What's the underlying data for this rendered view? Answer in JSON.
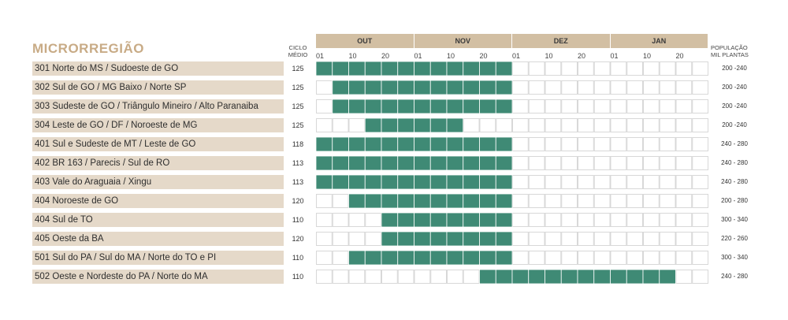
{
  "header": {
    "title": "MICRORREGIÃO",
    "ciclo_line1": "CICLO",
    "ciclo_line2": "MÉDIO",
    "pop_line1": "POPULAÇÃO",
    "pop_line2": "MIL PLANTAS"
  },
  "colors": {
    "fill": "#3f8a75",
    "cell_border": "#d8d8d8",
    "month_bar": "#d2bfa3",
    "region_bg": "#e5d9c9",
    "title": "#c8ab86"
  },
  "chart_data": {
    "type": "table",
    "months": [
      "OUT",
      "NOV",
      "DEZ",
      "JAN"
    ],
    "day_ticks": [
      "01",
      "10",
      "20"
    ],
    "periods_per_month": 6,
    "rows": [
      {
        "region": "301 Norte do MS / Sudoeste de GO",
        "ciclo": "125",
        "populacao": "200 -240",
        "start": 0,
        "end": 12
      },
      {
        "region": "302 Sul de GO / MG Baixo / Norte SP",
        "ciclo": "125",
        "populacao": "200 -240",
        "start": 1,
        "end": 12
      },
      {
        "region": "303 Sudeste de GO / Triângulo Mineiro / Alto Paranaiba",
        "ciclo": "125",
        "populacao": "200 -240",
        "start": 1,
        "end": 12
      },
      {
        "region": "304 Leste de GO / DF / Noroeste de MG",
        "ciclo": "125",
        "populacao": "200 -240",
        "start": 3,
        "end": 9
      },
      {
        "region": "401 Sul e Sudeste de MT / Leste de GO",
        "ciclo": "118",
        "populacao": "240 - 280",
        "start": 0,
        "end": 12
      },
      {
        "region": "402 BR 163 / Parecis / Sul de RO",
        "ciclo": "113",
        "populacao": "240 - 280",
        "start": 0,
        "end": 12
      },
      {
        "region": "403 Vale do Araguaia / Xingu",
        "ciclo": "113",
        "populacao": "240 - 280",
        "start": 0,
        "end": 12
      },
      {
        "region": "404 Noroeste de GO",
        "ciclo": "120",
        "populacao": "200 - 280",
        "start": 2,
        "end": 12
      },
      {
        "region": "404 Sul de TO",
        "ciclo": "110",
        "populacao": "300 - 340",
        "start": 4,
        "end": 12
      },
      {
        "region": "405 Oeste da BA",
        "ciclo": "120",
        "populacao": "220 - 260",
        "start": 4,
        "end": 12
      },
      {
        "region": "501 Sul do PA / Sul do MA / Norte do TO e PI",
        "ciclo": "110",
        "populacao": "300 - 340",
        "start": 2,
        "end": 12
      },
      {
        "region": "502 Oeste e Nordeste do PA / Norte do MA",
        "ciclo": "110",
        "populacao": "240 - 280",
        "start": 10,
        "end": 22
      }
    ]
  }
}
